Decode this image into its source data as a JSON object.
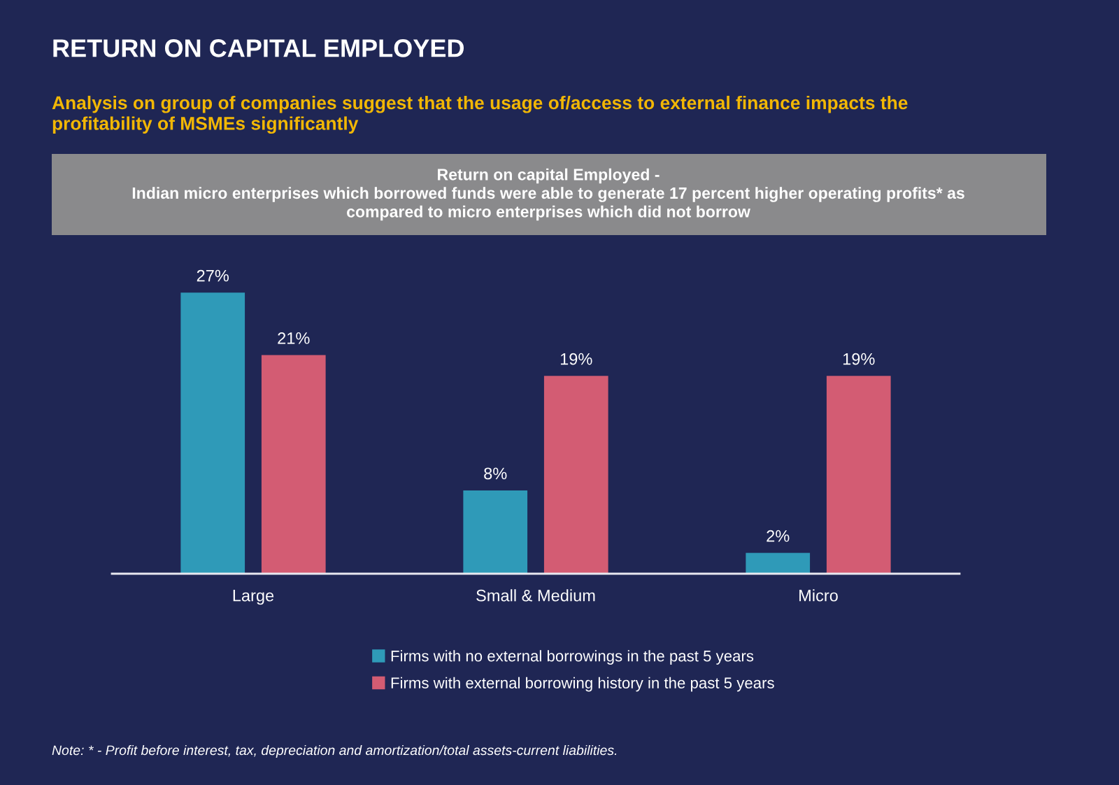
{
  "chart_data": {
    "type": "bar",
    "title": "RETURN ON CAPITAL EMPLOYED",
    "subtitle": "Analysis on group of companies suggest that the usage of/access to external finance impacts the\nprofitability of MSMEs significantly",
    "categories": [
      "Large",
      "Small & Medium",
      "Micro"
    ],
    "series": [
      {
        "name": "Firms with no external borrowings in the past 5 years",
        "color": "#2f9ab8",
        "values": [
          27,
          8,
          2
        ],
        "value_labels": [
          "27%",
          "8%",
          "2%"
        ]
      },
      {
        "name": "Firms with external borrowing history in the past 5 years",
        "color": "#d35c73",
        "values": [
          21,
          19,
          19
        ],
        "value_labels": [
          "21%",
          "19%",
          "19%"
        ]
      }
    ],
    "legend": "bottom",
    "annotations": [
      "Return on capital Employed -\nIndian micro enterprises which borrowed funds were able to generate 17 percent higher operating profits* as\ncompared to micro enterprises which did not borrow",
      "Note: * - Profit before interest, tax, depreciation and amortization/total assets-current liabilities."
    ]
  }
}
